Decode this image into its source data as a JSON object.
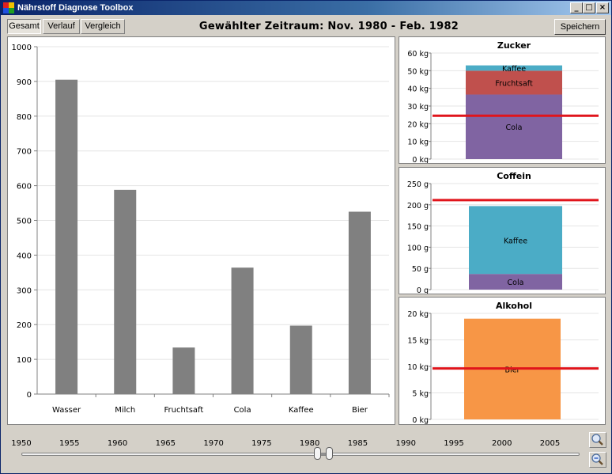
{
  "window": {
    "title": "Nährstoff Diagnose Toolbox",
    "min": "_",
    "max": "□",
    "close": "×"
  },
  "toolbar": {
    "tabs": [
      {
        "label": "Gesamt",
        "active": true
      },
      {
        "label": "Verlauf"
      },
      {
        "label": "Vergleich"
      }
    ],
    "period_title": "Gewählter Zeitraum: Nov. 1980 - Feb. 1982",
    "save_label": "Speichern"
  },
  "colors": {
    "bar": "#808080",
    "threshold": "#e0141b",
    "cola": "#8064a2",
    "fruchtsaft": "#c0504d",
    "kaffee": "#4bacc6",
    "bier": "#f79646"
  },
  "chart_data": [
    {
      "type": "bar",
      "categories": [
        "Wasser",
        "Milch",
        "Fruchtsaft",
        "Cola",
        "Kaffee",
        "Bier"
      ],
      "values": [
        905,
        588,
        134,
        364,
        197,
        525
      ],
      "ylim": [
        0,
        1000
      ],
      "yticks": [
        "0",
        "100",
        "200",
        "300",
        "400",
        "500",
        "600",
        "700",
        "800",
        "900",
        "1000"
      ],
      "grid": true
    },
    {
      "type": "bar",
      "stacked": true,
      "title": "Zucker",
      "series": [
        {
          "name": "Cola",
          "value": 36.5
        },
        {
          "name": "Fruchtsaft",
          "value": 13.5
        },
        {
          "name": "Kaffee",
          "value": 3
        }
      ],
      "threshold": 24.5,
      "ylim": [
        0,
        60
      ],
      "yticks": [
        "0 kg",
        "10 kg",
        "20 kg",
        "30 kg",
        "40 kg",
        "50 kg",
        "60 kg"
      ]
    },
    {
      "type": "bar",
      "stacked": true,
      "title": "Coffein",
      "series": [
        {
          "name": "Cola",
          "value": 37
        },
        {
          "name": "Kaffee",
          "value": 160
        }
      ],
      "threshold": 211,
      "ylim": [
        0,
        250
      ],
      "yticks": [
        "0 g",
        "50 g",
        "100 g",
        "150 g",
        "200 g",
        "250 g"
      ]
    },
    {
      "type": "bar",
      "stacked": true,
      "title": "Alkohol",
      "series": [
        {
          "name": "Bier",
          "value": 19
        }
      ],
      "threshold": 9.6,
      "ylim": [
        0,
        20
      ],
      "yticks": [
        "0 kg",
        "5 kg",
        "10 kg",
        "15 kg",
        "20 kg"
      ]
    }
  ],
  "timeline": {
    "years": [
      "1950",
      "1955",
      "1960",
      "1965",
      "1970",
      "1975",
      "1980",
      "1985",
      "1990",
      "1995",
      "2000",
      "2005"
    ],
    "year_range": [
      1950,
      2008
    ],
    "selection": [
      1980.83,
      1982.08
    ]
  },
  "icons": {
    "zoom_in": "zoom-in-icon",
    "zoom_out": "zoom-out-icon",
    "app": "app-icon"
  }
}
